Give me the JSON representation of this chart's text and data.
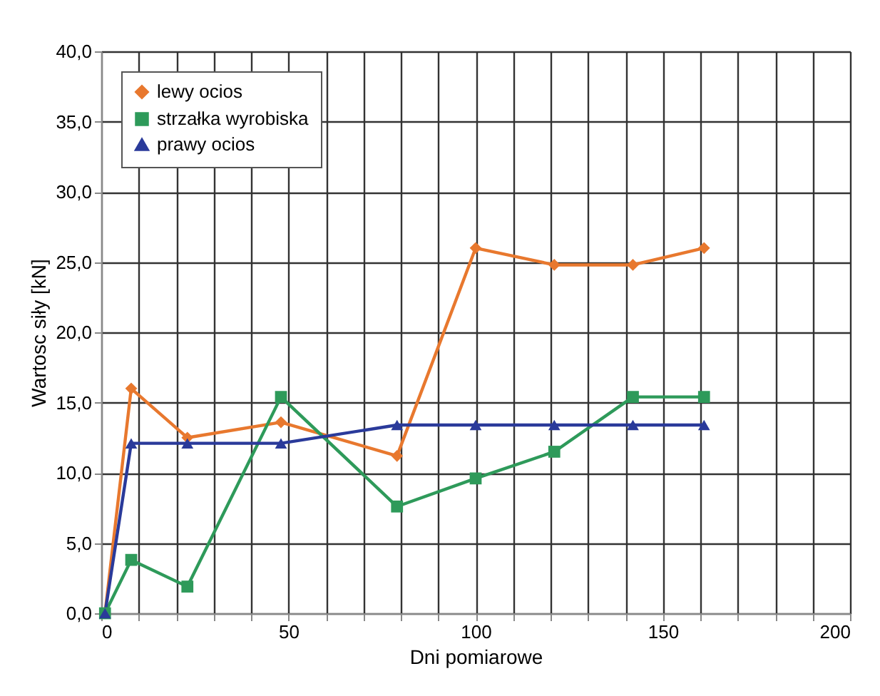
{
  "chart_data": {
    "type": "line",
    "xlabel": "Dni pomiarowe",
    "ylabel": "Wartosc siły [kN]",
    "x": [
      1,
      8,
      23,
      48,
      79,
      100,
      121,
      142,
      161
    ],
    "series": [
      {
        "name": "lewy ocios",
        "color": "#e8782e",
        "marker": "diamond",
        "values": [
          0,
          16.0,
          12.5,
          13.6,
          11.2,
          26.0,
          24.8,
          24.8,
          26.0
        ]
      },
      {
        "name": "strzałka wyrobiska",
        "color": "#2e9a5a",
        "marker": "square",
        "values": [
          0,
          3.8,
          1.9,
          15.4,
          7.6,
          9.6,
          11.5,
          15.4,
          15.4
        ]
      },
      {
        "name": "prawy ocios",
        "color": "#2a3a9a",
        "marker": "triangle",
        "values": [
          0,
          12.1,
          12.1,
          12.1,
          13.4,
          13.4,
          13.4,
          13.4,
          13.4
        ]
      }
    ],
    "xlim": [
      0,
      200
    ],
    "xticks": [
      0,
      {
        "value": 10,
        "label": null
      },
      {
        "value": 20,
        "label": null
      },
      {
        "value": 30,
        "label": null
      },
      {
        "value": 40,
        "label": null
      },
      50,
      {
        "value": 60,
        "label": null
      },
      {
        "value": 70,
        "label": null
      },
      {
        "value": 80,
        "label": null
      },
      {
        "value": 90,
        "label": null
      },
      100,
      {
        "value": 110,
        "label": null
      },
      {
        "value": 120,
        "label": null
      },
      {
        "value": 130,
        "label": null
      },
      {
        "value": 140,
        "label": null
      },
      150,
      {
        "value": 160,
        "label": null
      },
      {
        "value": 170,
        "label": null
      },
      {
        "value": 180,
        "label": null
      },
      {
        "value": 190,
        "label": null
      },
      200
    ],
    "ylim": [
      0,
      40
    ],
    "yticks": [
      {
        "value": 0,
        "label": "0,0"
      },
      {
        "value": 5,
        "label": "5,0"
      },
      {
        "value": 10,
        "label": "10,0"
      },
      {
        "value": 15,
        "label": "15,0"
      },
      {
        "value": 20,
        "label": "20,0"
      },
      {
        "value": 25,
        "label": "25,0"
      },
      {
        "value": 30,
        "label": "30,0"
      },
      {
        "value": 35,
        "label": "35,0"
      },
      {
        "value": 40,
        "label": "40,0"
      }
    ],
    "grid": true,
    "legend": "top left",
    "line_style": "solid"
  }
}
